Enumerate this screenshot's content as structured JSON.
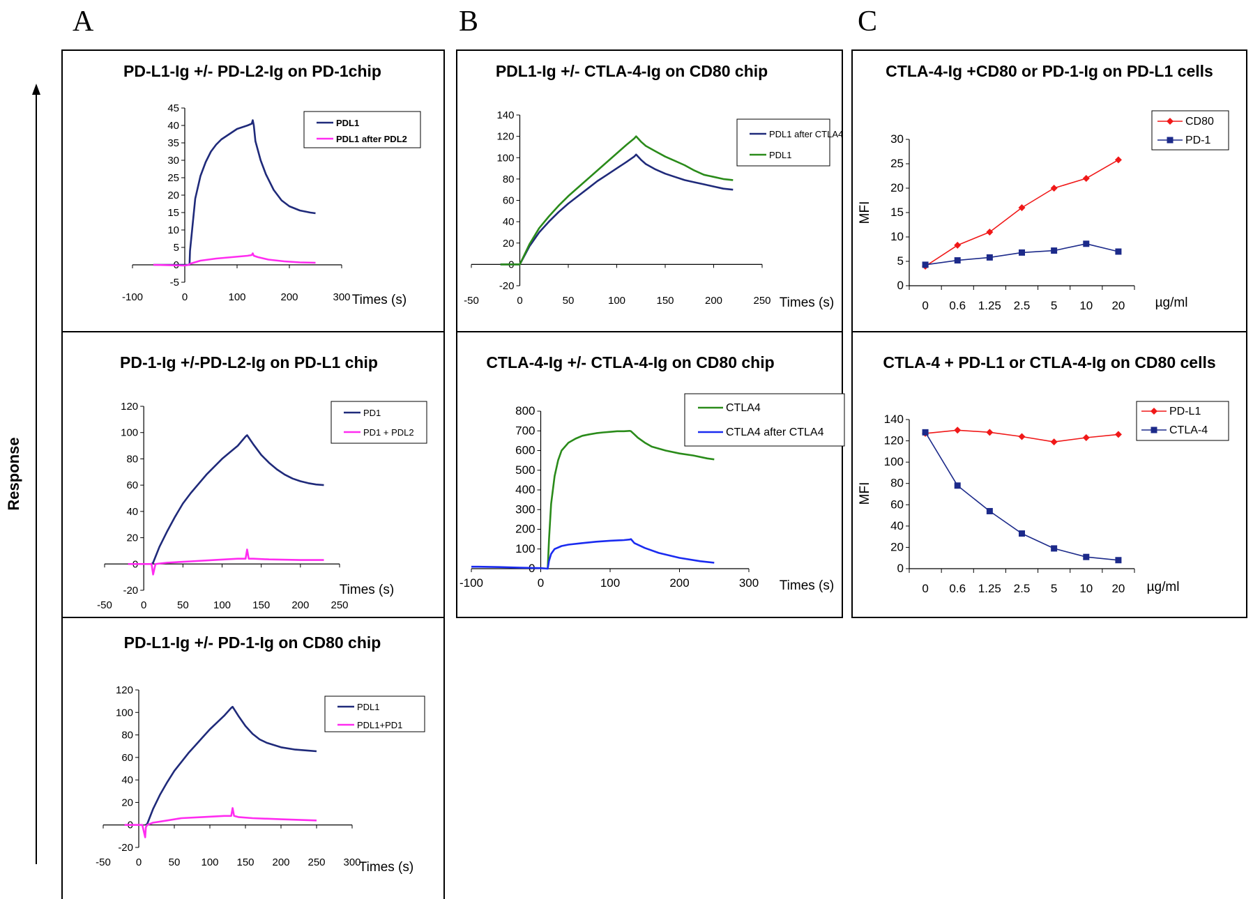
{
  "panel_letters": {
    "a": "A",
    "b": "B",
    "c": "C"
  },
  "response_label": "Response",
  "chart_data": [
    {
      "id": "a1",
      "type": "line",
      "title": "PD-L1-Ig +/- PD-L2-Ig on PD-1chip",
      "xlabel": "Times (s)",
      "ylabel": "",
      "xlim": [
        -100,
        300
      ],
      "ylim": [
        -5,
        45
      ],
      "xticks": [
        -100,
        0,
        100,
        200,
        300
      ],
      "yticks": [
        -5,
        0,
        5,
        10,
        15,
        20,
        25,
        30,
        35,
        40,
        45
      ],
      "legend_style": "bold",
      "series": [
        {
          "name": "PDL1",
          "color": "#1f2a7a",
          "x": [
            -60,
            8,
            9,
            10,
            20,
            30,
            40,
            50,
            60,
            70,
            80,
            90,
            100,
            110,
            120,
            128,
            130,
            132,
            135,
            145,
            155,
            170,
            185,
            200,
            220,
            240,
            250
          ],
          "y": [
            0,
            0,
            0,
            4,
            19,
            25.5,
            29.5,
            32.5,
            34.5,
            36,
            37,
            38,
            39,
            39.5,
            40,
            40.5,
            41.5,
            40,
            35.5,
            30,
            26,
            21.5,
            18.5,
            16.8,
            15.6,
            15,
            14.8
          ]
        },
        {
          "name": "PDL1 after PDL2",
          "color": "#ff2cf0",
          "x": [
            -60,
            0,
            8,
            10,
            30,
            60,
            90,
            120,
            128,
            130,
            132,
            140,
            160,
            190,
            220,
            250
          ],
          "y": [
            0,
            -0.2,
            0,
            0.3,
            1.2,
            1.8,
            2.2,
            2.6,
            2.8,
            3.3,
            2.6,
            2.2,
            1.5,
            1,
            0.7,
            0.6
          ]
        }
      ]
    },
    {
      "id": "a2",
      "type": "line",
      "title": "PD-1-Ig +/-PD-L2-Ig on PD-L1 chip",
      "xlabel": "Times (s)",
      "ylabel": "",
      "xlim": [
        -50,
        250
      ],
      "ylim": [
        -20,
        120
      ],
      "xticks": [
        -50,
        0,
        50,
        100,
        150,
        200,
        250
      ],
      "yticks": [
        -20,
        0,
        20,
        40,
        60,
        80,
        100,
        120
      ],
      "legend_style": "plain",
      "series": [
        {
          "name": "PD1",
          "color": "#1f2a7a",
          "x": [
            10,
            12,
            20,
            30,
            40,
            50,
            60,
            70,
            80,
            90,
            100,
            110,
            120,
            130,
            132,
            140,
            150,
            160,
            170,
            180,
            190,
            200,
            210,
            220,
            230
          ],
          "y": [
            0,
            1,
            13,
            25,
            36,
            46,
            54,
            61,
            68,
            74,
            80,
            85,
            90,
            97,
            98,
            91,
            83,
            77,
            72,
            68,
            65,
            63,
            61.5,
            60.5,
            60
          ]
        },
        {
          "name": "PD1 + PDL2",
          "color": "#ff2cf0",
          "x": [
            -20,
            5,
            10,
            12,
            15,
            30,
            60,
            90,
            120,
            130,
            132,
            134,
            140,
            160,
            200,
            230
          ],
          "y": [
            0,
            0,
            0,
            -8,
            0,
            1,
            2,
            3,
            4,
            4,
            11,
            4,
            4,
            3.5,
            3,
            3
          ]
        }
      ]
    },
    {
      "id": "a3",
      "type": "line",
      "title": "PD-L1-Ig +/- PD-1-Ig on CD80 chip",
      "xlabel": "Times (s)",
      "ylabel": "",
      "xlim": [
        -50,
        300
      ],
      "ylim": [
        -20,
        120
      ],
      "xticks": [
        -50,
        0,
        50,
        100,
        150,
        200,
        250,
        300
      ],
      "yticks": [
        -20,
        0,
        20,
        40,
        60,
        80,
        100,
        120
      ],
      "legend_style": "plain",
      "series": [
        {
          "name": "PDL1",
          "color": "#1f2a7a",
          "x": [
            10,
            12,
            20,
            30,
            40,
            50,
            60,
            70,
            80,
            90,
            100,
            110,
            120,
            130,
            132,
            140,
            150,
            160,
            170,
            180,
            200,
            220,
            240,
            250
          ],
          "y": [
            0,
            1,
            14,
            27,
            38,
            48,
            56,
            64,
            71,
            78,
            85,
            91,
            97,
            104,
            105,
            97,
            88,
            81,
            76,
            73,
            69,
            67,
            66,
            65.5
          ]
        },
        {
          "name": "PDL1+PD1",
          "color": "#ff2cf0",
          "x": [
            -20,
            5,
            9,
            10,
            12,
            20,
            40,
            60,
            90,
            120,
            130,
            132,
            134,
            140,
            160,
            200,
            250
          ],
          "y": [
            0,
            0,
            -11,
            -2,
            0,
            2,
            4,
            6,
            7,
            8,
            8,
            15,
            8,
            7,
            6,
            5,
            4
          ]
        }
      ]
    },
    {
      "id": "b1",
      "type": "line",
      "title": "PDL1-Ig +/- CTLA-4-Ig on CD80 chip",
      "xlabel": "Times (s)",
      "ylabel": "",
      "xlim": [
        -50,
        250
      ],
      "ylim": [
        -20,
        140
      ],
      "xticks": [
        -50,
        0,
        50,
        100,
        150,
        200,
        250
      ],
      "yticks": [
        -20,
        0,
        20,
        40,
        60,
        80,
        100,
        120,
        140
      ],
      "legend_style": "plain",
      "series": [
        {
          "name": "PDL1 after CTLA4",
          "color": "#1f2a7a",
          "x": [
            -20,
            0,
            10,
            20,
            30,
            40,
            50,
            60,
            70,
            80,
            90,
            100,
            110,
            118,
            120,
            125,
            130,
            140,
            150,
            160,
            170,
            180,
            190,
            200,
            210,
            220
          ],
          "y": [
            0,
            0,
            17,
            30,
            40,
            49,
            57,
            64,
            71,
            78,
            84,
            90,
            96,
            101,
            103,
            98,
            94,
            89,
            85,
            82,
            79,
            77,
            75,
            73,
            71,
            70
          ]
        },
        {
          "name": "PDL1",
          "color": "#2a8b1a",
          "x": [
            -20,
            0,
            10,
            20,
            30,
            40,
            50,
            60,
            70,
            80,
            90,
            100,
            110,
            118,
            120,
            125,
            130,
            140,
            150,
            160,
            170,
            180,
            190,
            200,
            210,
            220
          ],
          "y": [
            0,
            0,
            19,
            34,
            45,
            55,
            64,
            72,
            80,
            88,
            96,
            104,
            112,
            118,
            120,
            115,
            111,
            106,
            101,
            97,
            93,
            88,
            84,
            82,
            80,
            79
          ]
        }
      ]
    },
    {
      "id": "b2",
      "type": "line",
      "title": "CTLA-4-Ig +/- CTLA-4-Ig on CD80 chip",
      "xlabel": "Times (s)",
      "ylabel": "",
      "xlim": [
        -100,
        300
      ],
      "ylim": [
        0,
        800
      ],
      "xticks": [
        -100,
        0,
        100,
        200,
        300
      ],
      "yticks": [
        0,
        100,
        200,
        300,
        400,
        500,
        600,
        700,
        800
      ],
      "legend_style": "big",
      "series": [
        {
          "name": "CTLA4",
          "color": "#2a8b1a",
          "x": [
            10,
            12,
            15,
            20,
            25,
            30,
            40,
            50,
            60,
            70,
            80,
            90,
            100,
            110,
            120,
            128,
            130,
            135,
            140,
            150,
            160,
            180,
            200,
            220,
            240,
            250
          ],
          "y": [
            0,
            150,
            330,
            470,
            550,
            600,
            640,
            660,
            675,
            682,
            688,
            692,
            695,
            698,
            698,
            700,
            698,
            682,
            665,
            640,
            620,
            600,
            585,
            575,
            560,
            555
          ]
        },
        {
          "name": "CTLA4 after CTLA4",
          "color": "#1a2bf0",
          "x": [
            -100,
            -90,
            -60,
            -30,
            0,
            10,
            12,
            15,
            20,
            30,
            40,
            60,
            80,
            100,
            120,
            128,
            130,
            135,
            150,
            170,
            200,
            230,
            250
          ],
          "y": [
            10,
            10,
            8,
            5,
            3,
            0,
            40,
            75,
            100,
            115,
            122,
            130,
            137,
            142,
            145,
            148,
            150,
            130,
            105,
            80,
            55,
            38,
            30
          ]
        }
      ]
    },
    {
      "id": "c1",
      "type": "line",
      "title": "CTLA-4-Ig +CD80 or PD-1-Ig on PD-L1 cells",
      "xlabel": "µg/ml",
      "ylabel": "MFI",
      "categories": [
        "0",
        "0.6",
        "1.25",
        "2.5",
        "5",
        "10",
        "20"
      ],
      "ylim": [
        0,
        30
      ],
      "yticks": [
        0,
        5,
        10,
        15,
        20,
        25,
        30
      ],
      "legend_style": "big",
      "series": [
        {
          "name": "CD80",
          "color": "#f01818",
          "marker": "diamond",
          "values": [
            4,
            8.3,
            11,
            16,
            20,
            22,
            25.8
          ]
        },
        {
          "name": "PD-1",
          "color": "#1c2a8a",
          "marker": "square",
          "values": [
            4.3,
            5.2,
            5.8,
            6.8,
            7.2,
            8.6,
            7
          ]
        }
      ]
    },
    {
      "id": "c2",
      "type": "line",
      "title": "CTLA-4 + PD-L1 or CTLA-4-Ig on CD80 cells",
      "xlabel": "µg/ml",
      "ylabel": "MFI",
      "categories": [
        "0",
        "0.6",
        "1.25",
        "2.5",
        "5",
        "10",
        "20"
      ],
      "ylim": [
        0,
        140
      ],
      "yticks": [
        0,
        20,
        40,
        60,
        80,
        100,
        120,
        140
      ],
      "legend_style": "big",
      "series": [
        {
          "name": "PD-L1",
          "color": "#f01818",
          "marker": "diamond",
          "values": [
            127,
            130,
            128,
            124,
            119,
            123,
            126
          ]
        },
        {
          "name": "CTLA-4",
          "color": "#1c2a8a",
          "marker": "square",
          "values": [
            128,
            78,
            54,
            33,
            19,
            11,
            8
          ]
        }
      ]
    }
  ]
}
